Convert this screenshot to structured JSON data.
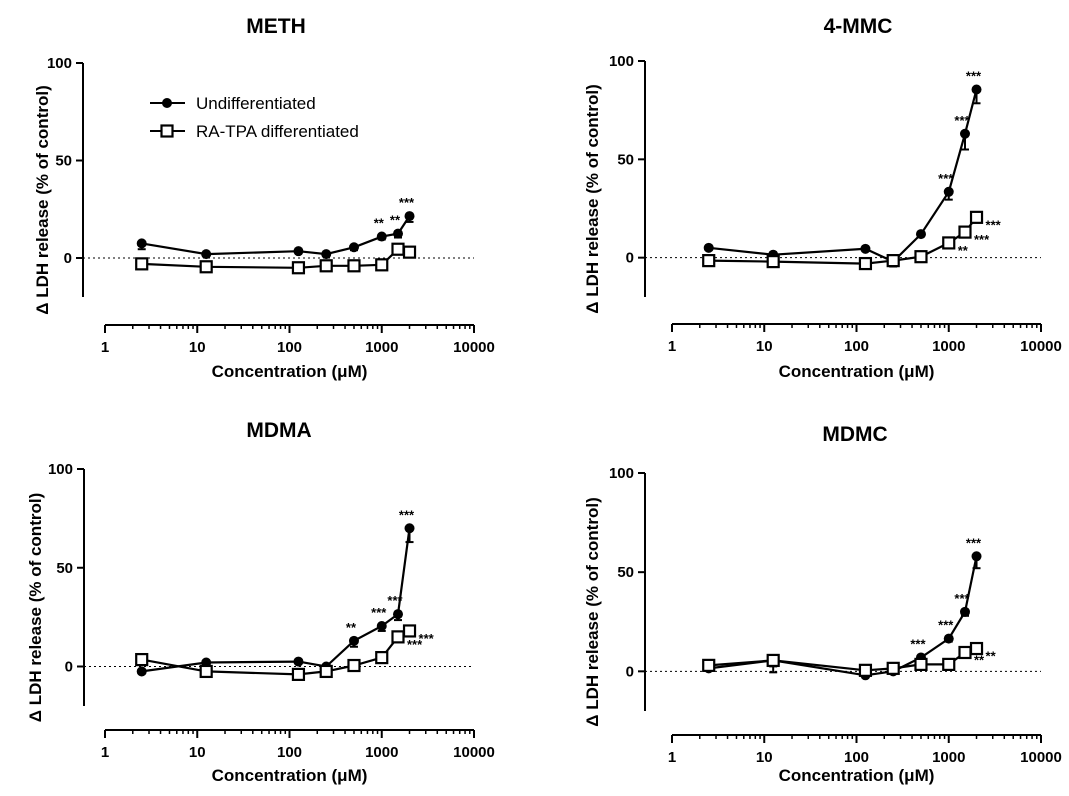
{
  "chart_data": [
    {
      "type": "line",
      "title": "METH",
      "xlabel": "Concentration (μM)",
      "ylabel": "Δ LDH release (% of control)",
      "xscale": "log",
      "xlim": [
        1,
        10000
      ],
      "ylim": [
        -20,
        100
      ],
      "yticks": [
        0,
        50,
        100
      ],
      "xticks": [
        1,
        10,
        100,
        1000,
        10000
      ],
      "reference_line": 0,
      "legend": "top-left",
      "series": [
        {
          "name": "Undifferentiated",
          "marker": "filled-circle",
          "x": [
            2.5,
            12.5,
            125,
            250,
            500,
            1000,
            1500,
            2000
          ],
          "y": [
            7.5,
            2,
            3.5,
            2,
            5.5,
            11,
            12.5,
            21.5
          ],
          "err": [
            3,
            1,
            1,
            1,
            1.5,
            1.5,
            2,
            3
          ],
          "sig": [
            "",
            "",
            "",
            "",
            "",
            "**",
            "**",
            "***"
          ]
        },
        {
          "name": "RA-TPA differentiated",
          "marker": "open-square",
          "x": [
            2.5,
            12.5,
            125,
            250,
            500,
            1000,
            1500,
            2000
          ],
          "y": [
            -3,
            -4.5,
            -5,
            -4,
            -4,
            -3.5,
            4.5,
            3
          ],
          "err": [
            1,
            1,
            1,
            1,
            1,
            1,
            1,
            1
          ],
          "sig": [
            "",
            "",
            "",
            "",
            "",
            "",
            "",
            ""
          ]
        }
      ]
    },
    {
      "type": "line",
      "title": "4-MMC",
      "xlabel": "Concentration (μM)",
      "ylabel": "Δ LDH release (% of control)",
      "xscale": "log",
      "xlim": [
        1,
        10000
      ],
      "ylim": [
        -20,
        100
      ],
      "yticks": [
        0,
        50,
        100
      ],
      "xticks": [
        1,
        10,
        100,
        1000,
        10000
      ],
      "reference_line": 0,
      "series": [
        {
          "name": "Undifferentiated",
          "marker": "filled-circle",
          "x": [
            2.5,
            12.5,
            125,
            250,
            500,
            1000,
            1500,
            2000
          ],
          "y": [
            5,
            1.5,
            4.5,
            -2,
            12,
            33.5,
            63,
            85.5
          ],
          "err": [
            1,
            1,
            1,
            2,
            1,
            4,
            8,
            7
          ],
          "sig": [
            "",
            "",
            "",
            "",
            "",
            "***",
            "***",
            "***"
          ]
        },
        {
          "name": "RA-TPA differentiated",
          "marker": "open-square",
          "x": [
            2.5,
            12.5,
            125,
            250,
            500,
            1000,
            1500,
            2000
          ],
          "y": [
            -1.5,
            -2,
            -3,
            -1.5,
            0.5,
            7.5,
            13,
            20.5
          ],
          "err": [
            1,
            1,
            1,
            3,
            1,
            1,
            1,
            1
          ],
          "sig": [
            "",
            "",
            "",
            "",
            "",
            "**",
            "***",
            "***"
          ]
        }
      ]
    },
    {
      "type": "line",
      "title": "MDMA",
      "xlabel": "Concentration (μM)",
      "ylabel": "Δ LDH release (% of control)",
      "xscale": "log",
      "xlim": [
        1,
        10000
      ],
      "ylim": [
        -20,
        100
      ],
      "yticks": [
        0,
        50,
        100
      ],
      "xticks": [
        1,
        10,
        100,
        1000,
        10000
      ],
      "reference_line": 0,
      "series": [
        {
          "name": "Undifferentiated",
          "marker": "filled-circle",
          "x": [
            2.5,
            12.5,
            125,
            250,
            500,
            1000,
            1500,
            2000
          ],
          "y": [
            -2.5,
            2,
            2.5,
            0,
            13,
            20.5,
            26.5,
            70
          ],
          "err": [
            1,
            1,
            1,
            1,
            3,
            2.5,
            3,
            7
          ],
          "sig": [
            "",
            "",
            "",
            "",
            "**",
            "***",
            "***",
            "***"
          ]
        },
        {
          "name": "RA-TPA differentiated",
          "marker": "open-square",
          "x": [
            2.5,
            12.5,
            125,
            250,
            500,
            1000,
            1500,
            2000
          ],
          "y": [
            3.5,
            -2.5,
            -4,
            -2.5,
            0.5,
            4.5,
            15,
            18
          ],
          "err": [
            1,
            1,
            1,
            1,
            1,
            1,
            1,
            1
          ],
          "sig": [
            "",
            "",
            "",
            "",
            "",
            "",
            "***",
            "***"
          ]
        }
      ]
    },
    {
      "type": "line",
      "title": "MDMC",
      "xlabel": "Concentration (μM)",
      "ylabel": "Δ LDH release (% of control)",
      "xscale": "log",
      "xlim": [
        1,
        10000
      ],
      "ylim": [
        -20,
        100
      ],
      "yticks": [
        0,
        50,
        100
      ],
      "xticks": [
        1,
        10,
        100,
        1000,
        10000
      ],
      "reference_line": 0,
      "series": [
        {
          "name": "Undifferentiated",
          "marker": "filled-circle",
          "x": [
            2.5,
            12.5,
            125,
            250,
            500,
            1000,
            1500,
            2000
          ],
          "y": [
            1.5,
            5.5,
            -2,
            0,
            7,
            16.5,
            30,
            58
          ],
          "err": [
            1,
            6,
            1,
            1,
            1,
            1.5,
            2,
            6
          ],
          "sig": [
            "",
            "",
            "",
            "",
            "***",
            "***",
            "***",
            "***"
          ]
        },
        {
          "name": "RA-TPA differentiated",
          "marker": "open-square",
          "x": [
            2.5,
            12.5,
            125,
            250,
            500,
            1000,
            1500,
            2000
          ],
          "y": [
            3,
            5.5,
            0.5,
            1.5,
            3.5,
            3.5,
            9.5,
            11.5
          ],
          "err": [
            1,
            3,
            1,
            1,
            1,
            1,
            1,
            1
          ],
          "sig": [
            "",
            "",
            "",
            "",
            "",
            "",
            "**",
            "**"
          ]
        }
      ]
    }
  ]
}
